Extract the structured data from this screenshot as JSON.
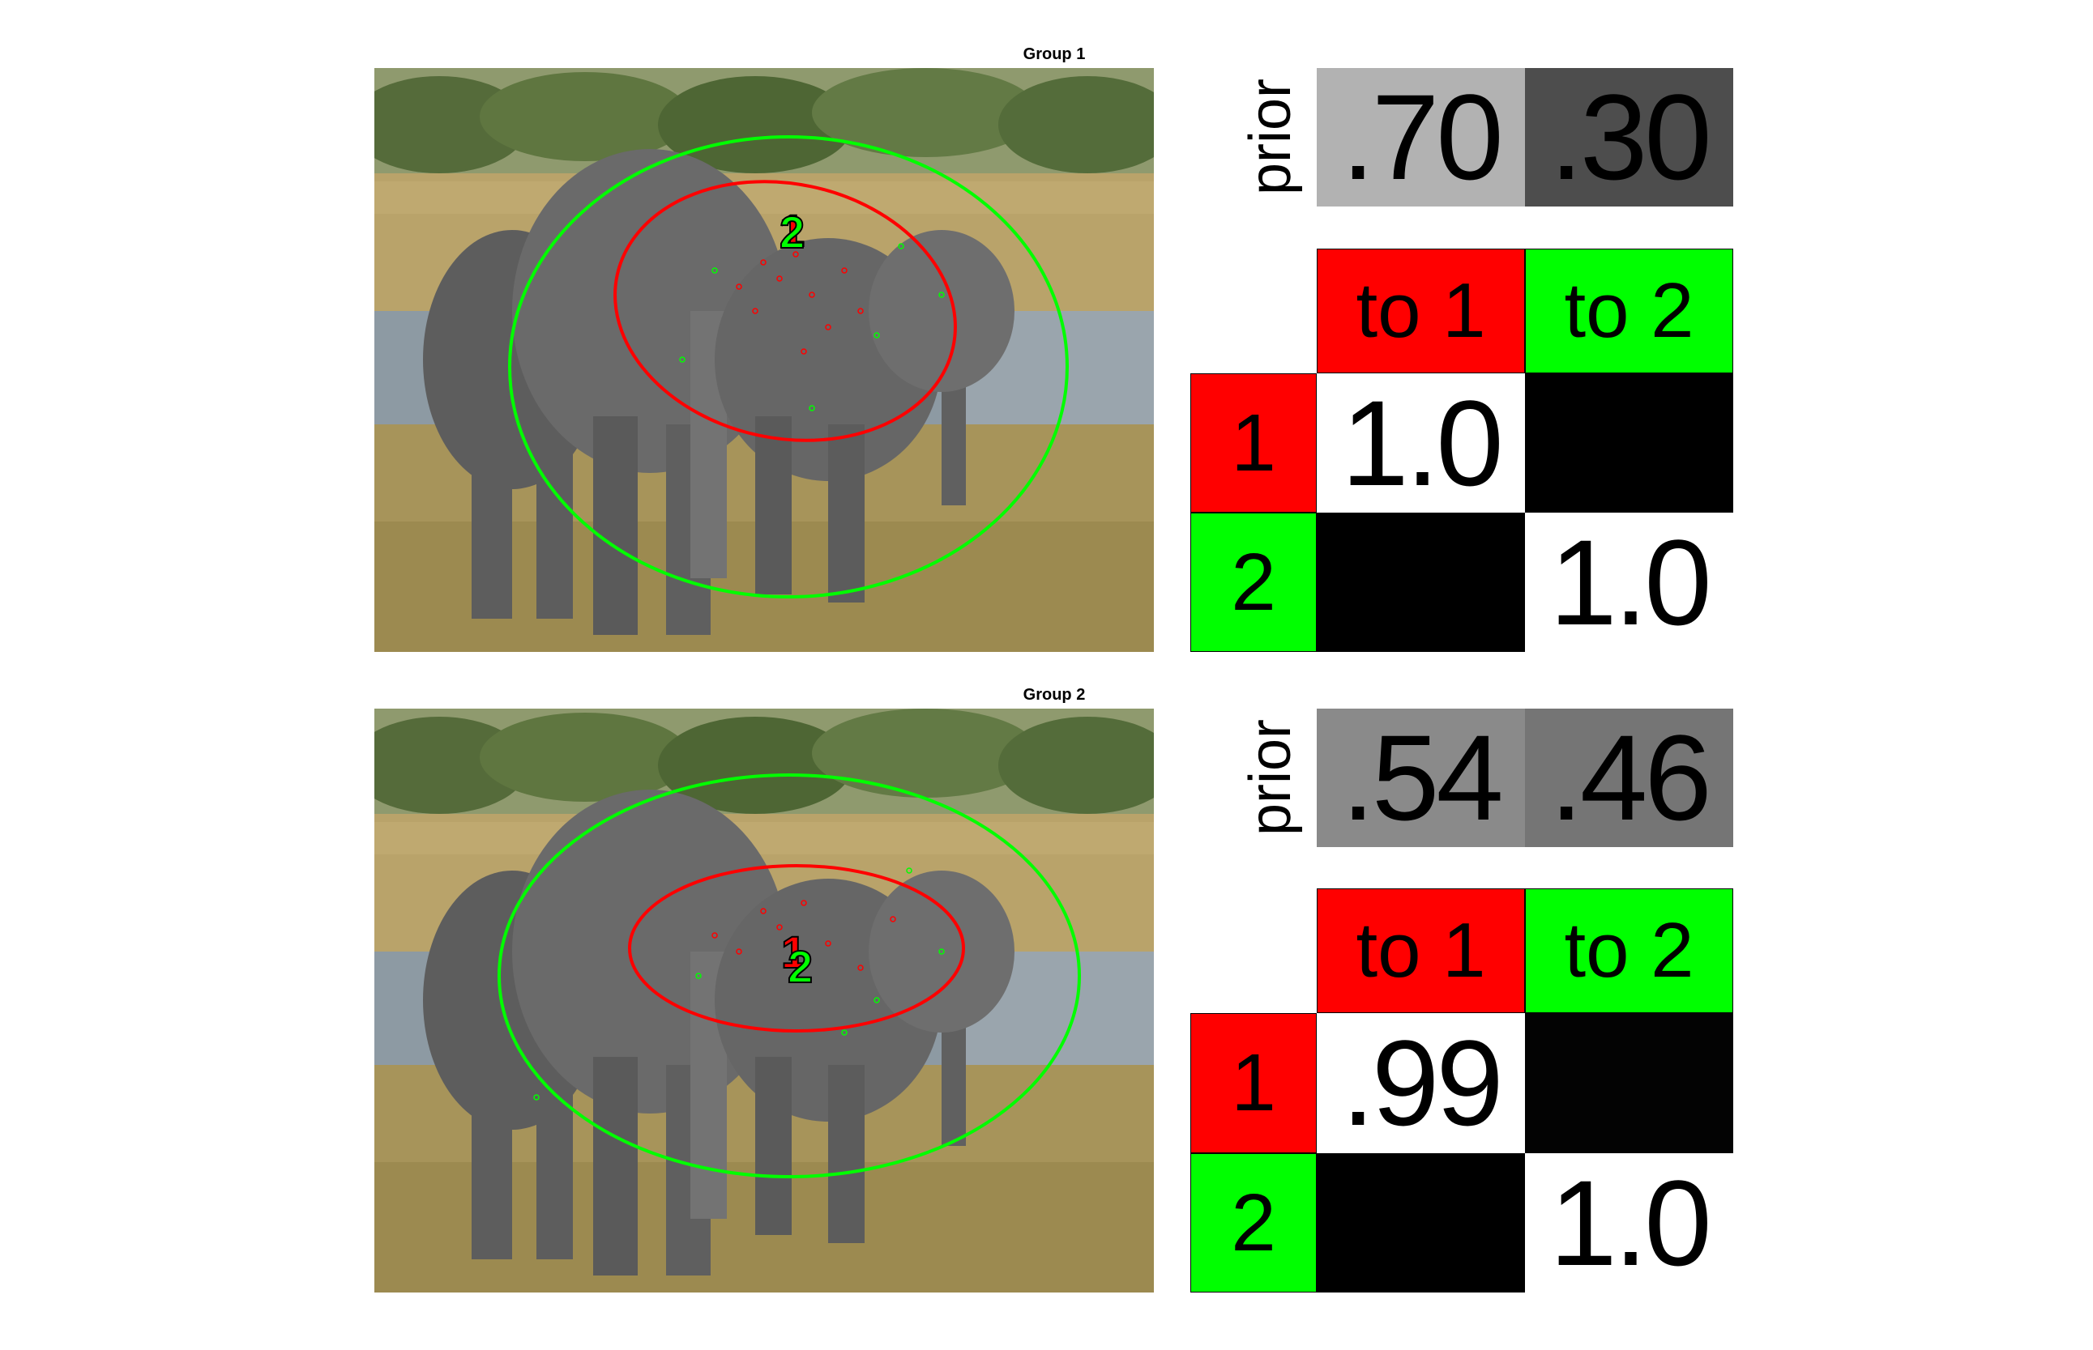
{
  "groups": [
    {
      "title": "Group 1",
      "prior": {
        "label": "prior",
        "values": [
          ".70",
          ".30"
        ],
        "colors": [
          "#b2b2b2",
          "#4d4d4d"
        ]
      },
      "matrix": {
        "col_headers": [
          "to 1",
          "to 2"
        ],
        "row_headers": [
          "1",
          "2"
        ],
        "cells": [
          [
            "1.0",
            ""
          ],
          [
            "",
            "1.0"
          ]
        ],
        "cell_colors": [
          [
            "#ffffff",
            "#000000"
          ],
          [
            "#000000",
            "#ffffff"
          ]
        ]
      },
      "markers": {
        "labels": [
          "1",
          "2"
        ],
        "colors": [
          "#ff0000",
          "#00ff00"
        ]
      }
    },
    {
      "title": "Group 2",
      "prior": {
        "label": "prior",
        "values": [
          ".54",
          ".46"
        ],
        "colors": [
          "#8a8a8a",
          "#757575"
        ]
      },
      "matrix": {
        "col_headers": [
          "to 1",
          "to 2"
        ],
        "row_headers": [
          "1",
          "2"
        ],
        "cells": [
          [
            ".99",
            ""
          ],
          [
            "",
            "1.0"
          ]
        ],
        "cell_colors": [
          [
            "#ffffff",
            "#030303"
          ],
          [
            "#000000",
            "#ffffff"
          ]
        ]
      },
      "markers": {
        "labels": [
          "1",
          "2"
        ],
        "colors": [
          "#ff0000",
          "#00ff00"
        ]
      }
    }
  ],
  "colors": {
    "group1": "#ff0000",
    "group2": "#00ff00"
  }
}
